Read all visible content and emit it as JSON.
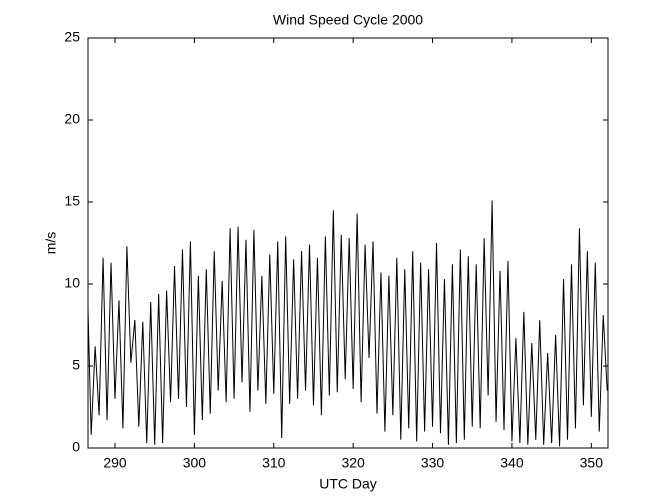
{
  "chart_data": {
    "type": "line",
    "title": "Wind Speed Cycle 2000",
    "x_label": "UTC Day",
    "y_label": "m/s",
    "x": [
      286.6,
      287,
      287.5,
      288,
      288.5,
      289,
      289.5,
      290,
      290.5,
      291,
      291.5,
      292,
      292.5,
      293,
      293.5,
      294,
      294.5,
      295,
      295.5,
      296,
      296.5,
      297,
      297.5,
      298,
      298.5,
      299,
      299.5,
      300,
      300.5,
      301,
      301.5,
      302,
      302.5,
      303,
      303.5,
      304,
      304.5,
      305,
      305.5,
      306,
      306.5,
      307,
      307.5,
      308,
      308.5,
      309,
      309.5,
      310,
      310.5,
      311,
      311.5,
      312,
      312.5,
      313,
      313.5,
      314,
      314.5,
      315,
      315.5,
      316,
      316.5,
      317,
      317.5,
      318,
      318.5,
      319,
      319.5,
      320,
      320.5,
      321,
      321.5,
      322,
      322.5,
      323,
      323.5,
      324,
      324.5,
      325,
      325.5,
      326,
      326.5,
      327,
      327.5,
      328,
      328.5,
      329,
      329.5,
      330,
      330.5,
      331,
      331.5,
      332,
      332.5,
      333,
      333.5,
      334,
      334.5,
      335,
      335.5,
      336,
      336.5,
      337,
      337.5,
      338,
      338.5,
      339,
      339.5,
      340,
      340.5,
      341,
      341.5,
      342,
      342.5,
      343,
      343.5,
      344,
      344.5,
      345,
      345.5,
      346,
      346.5,
      347,
      347.5,
      348,
      348.5,
      349,
      349.5,
      350,
      350.5,
      351,
      351.5,
      352
    ],
    "values": [
      8.5,
      0.8,
      6.2,
      2.0,
      11.6,
      1.7,
      11.3,
      3.0,
      9.0,
      1.2,
      12.3,
      5.2,
      7.8,
      1.3,
      7.7,
      0.3,
      8.9,
      0.2,
      9.4,
      0.3,
      9.6,
      2.8,
      11.1,
      3.0,
      12.1,
      2.5,
      12.6,
      0.8,
      10.5,
      1.7,
      10.9,
      2.1,
      12.0,
      3.5,
      10.2,
      2.8,
      13.4,
      3.0,
      13.5,
      4.0,
      12.7,
      2.2,
      13.3,
      3.5,
      10.5,
      2.7,
      11.8,
      3.3,
      12.6,
      0.6,
      12.9,
      2.7,
      11.5,
      3.0,
      12.0,
      3.5,
      12.4,
      2.6,
      11.6,
      2.0,
      12.9,
      3.2,
      14.5,
      3.4,
      13.0,
      4.2,
      12.8,
      3.6,
      14.3,
      2.8,
      12.4,
      5.5,
      12.6,
      2.1,
      10.7,
      1.0,
      10.5,
      2.0,
      11.6,
      0.5,
      10.9,
      1.2,
      12.0,
      0.4,
      11.3,
      1.0,
      10.9,
      1.3,
      12.5,
      0.9,
      10.3,
      0.2,
      11.2,
      0.3,
      12.1,
      0.5,
      11.7,
      1.3,
      11.2,
      1.2,
      12.8,
      3.2,
      15.1,
      1.6,
      10.8,
      1.1,
      11.4,
      0.4,
      6.7,
      0.3,
      8.3,
      0.2,
      6.4,
      0.5,
      7.8,
      0.2,
      5.8,
      0.3,
      6.9,
      0.1,
      10.3,
      0.5,
      11.2,
      1.2,
      13.4,
      2.6,
      12.0,
      1.9,
      11.3,
      1.0,
      8.1,
      3.5
    ],
    "color": "#000000",
    "xlim": [
      286.6,
      352.1
    ],
    "xticks": [
      290,
      300,
      310,
      320,
      330,
      340,
      350
    ],
    "ylim": [
      0,
      25
    ],
    "yticks": [
      0,
      5,
      10,
      15,
      20,
      25
    ]
  }
}
